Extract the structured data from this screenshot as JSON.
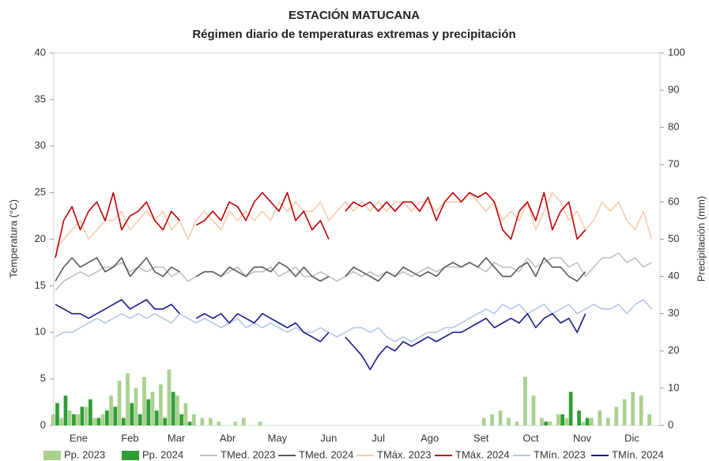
{
  "chart_data": {
    "type": "line",
    "title": "ESTACIÓN MATUCANA",
    "subtitle": "Régimen diario de temperaturas extremas y precipitación",
    "y_label": "Temperatura (°C)",
    "y2_label": "Precipitación (mm)",
    "xlim": [
      0,
      366
    ],
    "xticks": [
      {
        "value": 15,
        "label": "Ene"
      },
      {
        "value": 46,
        "label": "Feb"
      },
      {
        "value": 74,
        "label": "Mar"
      },
      {
        "value": 105,
        "label": "Abr"
      },
      {
        "value": 135,
        "label": "May"
      },
      {
        "value": 166,
        "label": "Jun"
      },
      {
        "value": 196,
        "label": "Jul"
      },
      {
        "value": 227,
        "label": "Ago"
      },
      {
        "value": 258,
        "label": "Set"
      },
      {
        "value": 288,
        "label": "Oct"
      },
      {
        "value": 319,
        "label": "Nov"
      },
      {
        "value": 349,
        "label": "Dic"
      }
    ],
    "ylim": [
      0,
      40
    ],
    "yticks": [
      0,
      5,
      10,
      15,
      20,
      25,
      30,
      35,
      40
    ],
    "y2lim": [
      0,
      100
    ],
    "y2ticks": [
      0,
      10,
      20,
      30,
      40,
      50,
      60,
      70,
      80,
      90,
      100
    ],
    "x": [
      1,
      6,
      11,
      16,
      21,
      26,
      31,
      36,
      41,
      46,
      51,
      56,
      61,
      66,
      71,
      76,
      81,
      86,
      91,
      96,
      101,
      106,
      111,
      116,
      121,
      126,
      131,
      136,
      141,
      146,
      151,
      156,
      161,
      166,
      171,
      176,
      181,
      186,
      191,
      196,
      201,
      206,
      211,
      216,
      221,
      226,
      231,
      236,
      241,
      246,
      251,
      256,
      261,
      266,
      271,
      276,
      281,
      286,
      291,
      296,
      301,
      306,
      311,
      316,
      321,
      326,
      331,
      336,
      341,
      346,
      351,
      356,
      361
    ],
    "series": [
      {
        "name": "Pp. 2023",
        "type": "bar",
        "axis": "y2",
        "color": "#a9d18e",
        "values": [
          3,
          2,
          4,
          3,
          5,
          2,
          3,
          8,
          12,
          14,
          10,
          13,
          9,
          11,
          15,
          8,
          6,
          3,
          2,
          2,
          1,
          0,
          1,
          2,
          0,
          1,
          0,
          0,
          0,
          0,
          0,
          0,
          0,
          0,
          0,
          0,
          0,
          0,
          0,
          0,
          0,
          0,
          0,
          0,
          0,
          0,
          0,
          0,
          0,
          0,
          0,
          0,
          2,
          3,
          4,
          2,
          1,
          13,
          8,
          2,
          1,
          3,
          2,
          0,
          1,
          2,
          4,
          2,
          5,
          7,
          9,
          8,
          3
        ]
      },
      {
        "name": "Pp. 2024",
        "type": "bar",
        "axis": "y2",
        "color": "#2e9e35",
        "values": [
          6,
          8,
          3,
          5,
          7,
          2,
          4,
          5,
          2,
          6,
          3,
          7,
          4,
          2,
          9,
          3,
          1,
          0,
          0,
          0,
          0,
          0,
          0,
          0,
          0,
          0,
          0,
          0,
          0,
          0,
          0,
          0,
          0,
          0,
          0,
          0,
          0,
          0,
          0,
          0,
          0,
          0,
          0,
          0,
          0,
          0,
          0,
          0,
          0,
          0,
          0,
          0,
          0,
          0,
          0,
          0,
          0,
          0,
          0,
          1,
          0,
          3,
          9,
          4,
          2,
          null,
          null,
          null,
          null,
          null,
          null,
          null,
          null
        ]
      },
      {
        "name": "TMed. 2023",
        "color": "#bfbfbf",
        "values": [
          14.5,
          15.5,
          16,
          16.5,
          16,
          16.5,
          17,
          17,
          17.5,
          16.5,
          17,
          16.5,
          17,
          17,
          16,
          16.5,
          15.5,
          16,
          16.5,
          16.5,
          16,
          16.5,
          17,
          16,
          16.5,
          16.5,
          17,
          16,
          16.5,
          17,
          16,
          16,
          16.5,
          16,
          15.5,
          16,
          16.5,
          16,
          16.5,
          16,
          16.5,
          16,
          16.5,
          16,
          16.5,
          17,
          16.5,
          17,
          17,
          17,
          17.5,
          17,
          16.5,
          17.5,
          17,
          17,
          16.5,
          18,
          17,
          17.5,
          18,
          18,
          17,
          17.5,
          16,
          17,
          18,
          18,
          18.5,
          17.5,
          18,
          17,
          17.5
        ]
      },
      {
        "name": "TMed. 2024",
        "color": "#595959",
        "values": [
          15.5,
          17,
          18,
          17,
          17.5,
          18,
          16.5,
          17,
          18,
          16,
          17,
          18,
          16.5,
          16,
          17,
          16.5,
          null,
          16,
          16.5,
          16.5,
          16,
          17,
          16.5,
          16,
          17,
          17,
          16.5,
          17.5,
          17,
          16,
          17,
          16,
          15.5,
          16,
          null,
          16,
          17,
          16.5,
          16,
          15.5,
          16.5,
          16,
          17,
          16.5,
          16,
          16.5,
          16,
          17,
          17.5,
          17,
          17.5,
          17,
          18,
          17,
          16,
          16,
          17,
          17.5,
          16,
          18,
          17,
          17,
          16,
          15.5,
          16.5,
          null,
          null,
          null,
          null,
          null,
          null,
          null,
          null
        ]
      },
      {
        "name": "TMáx. 2023",
        "color": "#f8cbad",
        "values": [
          19,
          20,
          21,
          22,
          20,
          21,
          22,
          22,
          23,
          21,
          22,
          23,
          22,
          23,
          21,
          22,
          20,
          22,
          23,
          22,
          21,
          23,
          22,
          23,
          22,
          23,
          22,
          24,
          23,
          24,
          23,
          23,
          24,
          22,
          23,
          24,
          23,
          24,
          23,
          24,
          23,
          24,
          24,
          23,
          24,
          24,
          23,
          24,
          24,
          24,
          25,
          24,
          23,
          24,
          22,
          23,
          22,
          24,
          21,
          23,
          25,
          24,
          22,
          23,
          21,
          22,
          24,
          23,
          24,
          22,
          21,
          23,
          20
        ]
      },
      {
        "name": "TMáx. 2024",
        "color": "#c00000",
        "values": [
          18,
          22,
          23.5,
          21,
          23,
          24,
          22,
          25,
          21,
          22.5,
          23,
          24,
          22,
          21,
          23,
          22,
          null,
          21.5,
          22,
          23,
          22,
          24,
          23.5,
          22,
          24,
          25,
          24,
          23,
          25,
          22,
          23,
          21,
          22,
          20,
          null,
          23,
          24,
          23.5,
          24,
          23,
          24,
          23,
          24,
          24,
          23,
          24.5,
          22,
          24,
          25,
          24,
          25,
          24.5,
          25,
          24,
          21,
          20,
          23,
          24,
          22,
          25,
          21,
          23,
          24,
          20,
          21,
          null,
          null,
          null,
          null,
          null,
          null,
          null,
          null
        ]
      },
      {
        "name": "TMín. 2023",
        "color": "#b4c7e7",
        "values": [
          9.5,
          10,
          10,
          10.5,
          11,
          11.5,
          11,
          11.5,
          12,
          11.5,
          12,
          11.5,
          12,
          11.5,
          11,
          12,
          11.5,
          11,
          11.5,
          11,
          10.5,
          11,
          11.5,
          10.5,
          11,
          10.5,
          11,
          10.5,
          10,
          10.5,
          10,
          10,
          10.5,
          10,
          9.5,
          10,
          10.5,
          10.5,
          10,
          10.5,
          9.5,
          9,
          9.5,
          9,
          9.5,
          10,
          10,
          10.5,
          10.5,
          11,
          11.5,
          12,
          12.5,
          12,
          13,
          12.5,
          13,
          12,
          12.5,
          13,
          12,
          12.5,
          13,
          12,
          12.5,
          13,
          12.5,
          12.5,
          13,
          12,
          13,
          13.5,
          12.5
        ]
      },
      {
        "name": "TMín. 2024",
        "color": "#1a1a8c",
        "values": [
          13,
          12.5,
          12,
          12,
          11.5,
          12,
          12.5,
          13,
          13.5,
          12.5,
          13,
          13.5,
          12.5,
          12.5,
          13,
          12,
          null,
          11.5,
          12,
          11.5,
          12,
          11,
          12,
          11.5,
          11,
          12,
          11.5,
          11,
          10.5,
          11,
          10,
          9.5,
          9,
          10,
          null,
          9.5,
          8.5,
          7.5,
          6,
          7.5,
          8.5,
          8,
          9,
          8.5,
          9,
          9.5,
          9,
          9.5,
          10,
          10,
          10.5,
          11,
          11.5,
          10.5,
          11,
          11.5,
          11,
          12,
          10.5,
          11.5,
          12,
          11,
          11.5,
          10,
          12,
          null,
          null,
          null,
          null,
          null,
          null,
          null,
          null
        ]
      }
    ]
  }
}
